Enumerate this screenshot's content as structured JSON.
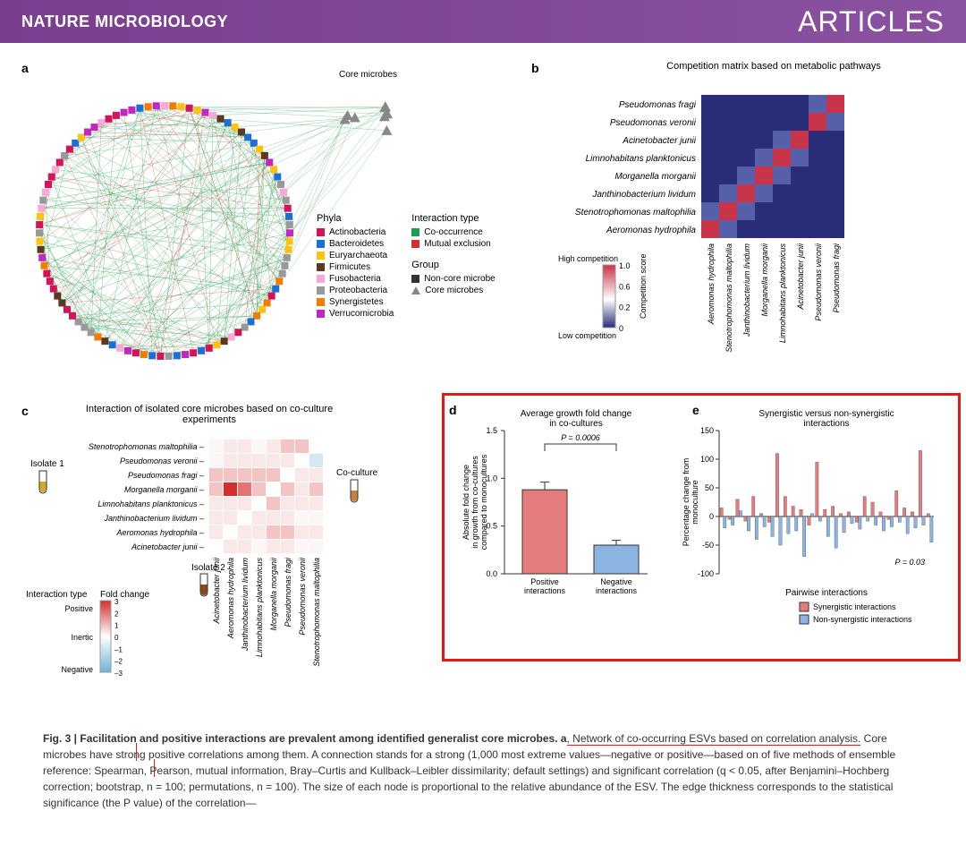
{
  "header": {
    "journal": "NATURE MICROBIOLOGY",
    "section": "ARTICLES"
  },
  "panels": {
    "a": "a",
    "b": "b",
    "c": "c",
    "d": "d",
    "e": "e"
  },
  "panel_a": {
    "core_label": "Core microbes",
    "phyla_title": "Phyla",
    "phyla": [
      {
        "label": "Actinobacteria",
        "color": "#d4145a"
      },
      {
        "label": "Bacteroidetes",
        "color": "#1b6fd6"
      },
      {
        "label": "Euryarchaeota",
        "color": "#ffc20e"
      },
      {
        "label": "Firmicutes",
        "color": "#5a3921"
      },
      {
        "label": "Fusobacteria",
        "color": "#f7a8d8"
      },
      {
        "label": "Proteobacteria",
        "color": "#999999"
      },
      {
        "label": "Synergistetes",
        "color": "#f57c00"
      },
      {
        "label": "Verrucomicrobia",
        "color": "#c427c0"
      }
    ],
    "interaction_title": "Interaction type",
    "interaction": [
      {
        "label": "Co-occurrence",
        "color": "#1b9e4a"
      },
      {
        "label": "Mutual exclusion",
        "color": "#d32f2f"
      }
    ],
    "group_title": "Group",
    "group_noncore": "Non-core microbe",
    "group_core": "Core microbes",
    "edge_colors": {
      "green": "#33a357",
      "red": "#d84c4c"
    }
  },
  "panel_b": {
    "title": "Competition matrix based on metabolic pathways",
    "species": [
      "Pseudomonas fragi",
      "Pseudomonas veronii",
      "Acinetobacter junii",
      "Limnohabitans planktonicus",
      "Morganella morganii",
      "Janthinobacterium lividum",
      "Stenotrophomonas maltophilia",
      "Aeromonas hydrophila"
    ],
    "x_species": [
      "Aeromonas hydrophila",
      "Stenotrophomonas maltophilia",
      "Janthinobacterium lividum",
      "Morganella morganii",
      "Limnohabitans planktonicus",
      "Acinetobacter junii",
      "Pseudomonas veronii",
      "Pseudomonas fragi"
    ],
    "scale_title": "Competition score",
    "scale_high": "High competition",
    "scale_low": "Low competition",
    "scale_ticks": [
      "1.0",
      "0.6",
      "0.2",
      "0"
    ],
    "colors": {
      "low": "#2a2d7a",
      "mid": "#7e84c5",
      "high": "#c8344a",
      "white": "#e8eaf2"
    },
    "matrix": [
      [
        0.3,
        0.3,
        0.3,
        0.3,
        0.3,
        0.3,
        0.5,
        1.0
      ],
      [
        0.3,
        0.3,
        0.3,
        0.3,
        0.3,
        0.3,
        1.0,
        0.5
      ],
      [
        0.3,
        0.3,
        0.3,
        0.3,
        0.4,
        1.0,
        0.3,
        0.3
      ],
      [
        0.3,
        0.3,
        0.3,
        0.4,
        1.0,
        0.4,
        0.3,
        0.3
      ],
      [
        0.3,
        0.3,
        0.4,
        1.0,
        0.4,
        0.3,
        0.3,
        0.3
      ],
      [
        0.3,
        0.4,
        1.0,
        0.4,
        0.3,
        0.3,
        0.3,
        0.3
      ],
      [
        0.4,
        1.0,
        0.4,
        0.3,
        0.3,
        0.3,
        0.3,
        0.3
      ],
      [
        1.0,
        0.4,
        0.3,
        0.3,
        0.3,
        0.3,
        0.3,
        0.3
      ]
    ]
  },
  "panel_c": {
    "title": "Interaction of isolated core microbes based on co-culture experiments",
    "isolate1": "Isolate 1",
    "isolate2": "Isolate 2",
    "coculture": "Co-culture",
    "y_species": [
      "Stenotrophomonas maltophilia",
      "Pseudomonas veronii",
      "Pseudomonas fragi",
      "Morganella morganii",
      "Limnohabitans planktonicus",
      "Janthinobacterium lividum",
      "Aeromonas hydrophila",
      "Acinetobacter junii"
    ],
    "x_species": [
      "Acinetobacter junii",
      "Aeromonas hydrophila",
      "Janthinobacterium lividum",
      "Limnohabitans planktonicus",
      "Morganella morganii",
      "Pseudomonas fragi",
      "Pseudomonas veronii",
      "Stenotrophomonas maltophilia"
    ],
    "scale_title": "Interaction type",
    "scale_fold": "Fold change",
    "scale_pos": "Positive",
    "scale_inert": "Inertic",
    "scale_neg": "Negative",
    "scale_ticks": [
      "3",
      "2",
      "1",
      "0",
      "–1",
      "–2",
      "–3"
    ],
    "colors": {
      "pos": "#d84c4c",
      "neg": "#6fb4d6",
      "mid": "#f5e8e8"
    },
    "matrix": [
      [
        0,
        0.2,
        0.1,
        0,
        0.1,
        0.4,
        0.5,
        null
      ],
      [
        0,
        0.1,
        0.1,
        0.2,
        0.2,
        0.2,
        null,
        -0.2
      ],
      [
        0.3,
        0.5,
        0.4,
        0.4,
        0.4,
        null,
        0.2,
        0.2
      ],
      [
        0.4,
        1.0,
        0.8,
        0.3,
        null,
        0.4,
        0.2,
        0.3
      ],
      [
        0.1,
        0.2,
        0.1,
        null,
        0.3,
        0.2,
        0.1,
        0.1
      ],
      [
        0.2,
        0.2,
        null,
        0.1,
        0.2,
        0.1,
        0,
        0
      ],
      [
        0.2,
        null,
        0.1,
        0.1,
        0.3,
        0.3,
        0.1,
        0.1
      ],
      [
        null,
        0.1,
        0.1,
        0,
        0.1,
        0.2,
        0,
        0
      ]
    ]
  },
  "panel_d": {
    "title": "Average growth fold change in co-cultures",
    "ylabel": "Absolute fold change in growth from co-cultures compared to monocultures",
    "pvalue": "P = 0.0006",
    "bars": [
      {
        "label": "Positive interactions",
        "value": 0.88,
        "err": 0.08,
        "color": "#e57c7c"
      },
      {
        "label": "Negative interactions",
        "value": 0.3,
        "err": 0.05,
        "color": "#8bb4e0"
      }
    ],
    "yticks": [
      0,
      0.5,
      1.0,
      1.5
    ]
  },
  "panel_e": {
    "title": "Synergistic versus non-synergistic interactions",
    "ylabel": "Percentage change from monoculture",
    "xlabel": "Pairwise interactions",
    "pvalue": "P = 0.03",
    "yticks": [
      -100,
      -50,
      0,
      50,
      100,
      150
    ],
    "legend": [
      {
        "label": "Synergistic interactions",
        "color": "#e57c7c"
      },
      {
        "label": "Non-synergistic interactions",
        "color": "#8bb4e0"
      }
    ],
    "syn": [
      15,
      -5,
      30,
      -8,
      35,
      5,
      -10,
      110,
      35,
      18,
      12,
      -15,
      95,
      12,
      18,
      5,
      8,
      -10,
      35,
      25,
      8,
      -5,
      45,
      15,
      8,
      115,
      5
    ],
    "nonsyn": [
      -20,
      -15,
      10,
      -25,
      -40,
      -18,
      -35,
      -50,
      -30,
      -25,
      -70,
      5,
      -8,
      -35,
      -55,
      -28,
      -12,
      -22,
      -8,
      -15,
      -25,
      -18,
      -10,
      -30,
      -20,
      -15,
      -45
    ]
  },
  "caption": {
    "lead": "Fig. 3 | Facilitation and positive interactions are prevalent among identified generalist core microbes. a",
    "text1": ", Network of co-occurring ESVs based on correlation analysis.",
    "highlight": " Core microbes have strong positive correlations among them. ",
    "text2": "A connection stands for a strong (1,000 most extreme values—negative or positive—based ",
    "text2b": "on of five methods of ensemble reference: Spearman, Pearson, mutual information, Bray–Curtis and Kullback–Leibler dissimilarity; default settings) and significant correlation (q < 0.05, after Benjamini–Hochberg correction; bootstrap, n = 100; permutations, n = 100). The size of each node is proportional to the relative abundance of the ESV. The edge thickness corresponds to the statistical significance (the P value) of the correlation—"
  }
}
